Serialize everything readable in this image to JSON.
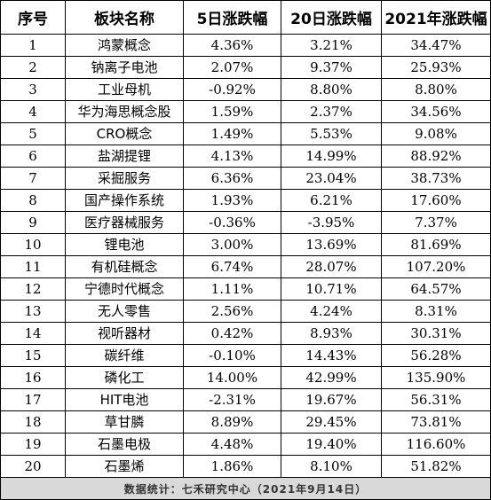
{
  "table": {
    "headers": [
      "序号",
      "板块名称",
      "5日涨跌幅",
      "20日涨跌幅",
      "2021年涨跌幅"
    ],
    "rows": [
      [
        "1",
        "鸿蒙概念",
        "4.36%",
        "3.21%",
        "34.47%"
      ],
      [
        "2",
        "钠离子电池",
        "2.07%",
        "9.37%",
        "25.93%"
      ],
      [
        "3",
        "工业母机",
        "-0.92%",
        "8.80%",
        "8.80%"
      ],
      [
        "4",
        "华为海思概念股",
        "1.59%",
        "2.37%",
        "34.56%"
      ],
      [
        "5",
        "CRO概念",
        "1.49%",
        "5.53%",
        "9.08%"
      ],
      [
        "6",
        "盐湖提锂",
        "4.13%",
        "14.99%",
        "88.92%"
      ],
      [
        "7",
        "采掘服务",
        "6.36%",
        "23.04%",
        "38.73%"
      ],
      [
        "8",
        "国产操作系统",
        "1.93%",
        "6.21%",
        "17.60%"
      ],
      [
        "9",
        "医疗器械服务",
        "-0.36%",
        "-3.95%",
        "7.37%"
      ],
      [
        "10",
        "锂电池",
        "3.00%",
        "13.69%",
        "81.69%"
      ],
      [
        "11",
        "有机硅概念",
        "6.74%",
        "28.07%",
        "107.20%"
      ],
      [
        "12",
        "宁德时代概念",
        "1.11%",
        "10.71%",
        "64.57%"
      ],
      [
        "13",
        "无人零售",
        "2.56%",
        "4.24%",
        "8.31%"
      ],
      [
        "14",
        "视听器材",
        "0.42%",
        "8.93%",
        "30.31%"
      ],
      [
        "15",
        "碳纤维",
        "-0.10%",
        "14.43%",
        "56.28%"
      ],
      [
        "16",
        "磷化工",
        "14.00%",
        "42.99%",
        "135.90%"
      ],
      [
        "17",
        "HIT电池",
        "-2.31%",
        "19.67%",
        "56.31%"
      ],
      [
        "18",
        "草甘膦",
        "8.89%",
        "29.45%",
        "73.81%"
      ],
      [
        "19",
        "石墨电极",
        "4.48%",
        "19.40%",
        "116.60%"
      ],
      [
        "20",
        "石墨烯",
        "1.86%",
        "8.10%",
        "51.82%"
      ]
    ],
    "footer": "数据统计：七禾研究中心（2021年9月14日）"
  },
  "colors": {
    "border": "#000000",
    "footer_background": "#d9d9d9"
  }
}
